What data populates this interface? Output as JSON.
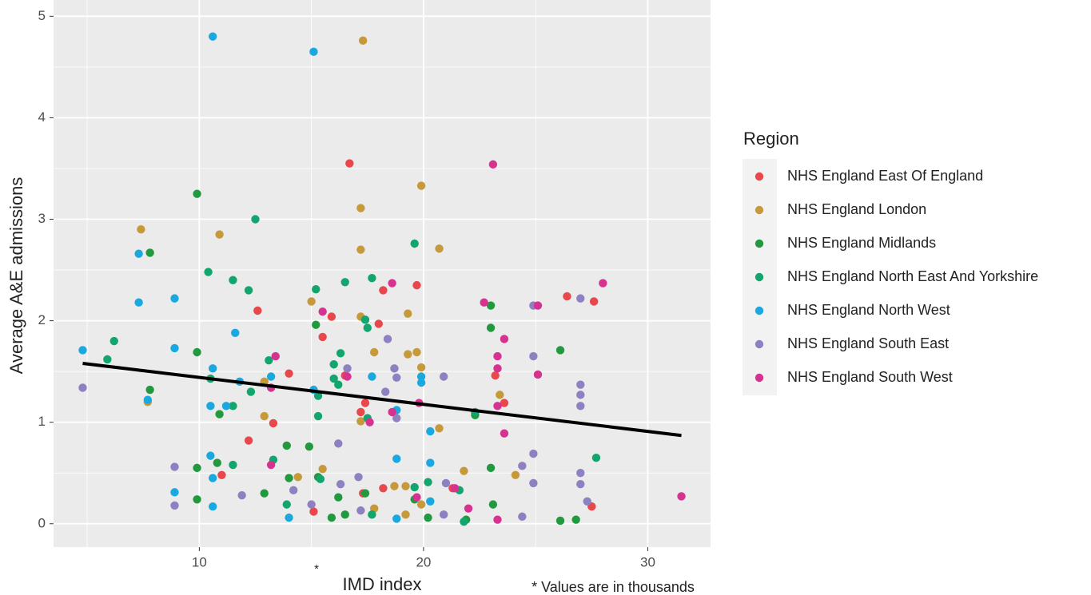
{
  "chart_data": {
    "type": "scatter",
    "x_label": "IMD index",
    "x_label_mark": "*",
    "y_label": "Average A&E admissions",
    "note": "* Values are in thousands",
    "legend_title": "Region",
    "legend_position": "right",
    "xlim": [
      3.5,
      32.8
    ],
    "ylim": [
      -0.23,
      5.16
    ],
    "xticks": [
      10,
      20,
      30
    ],
    "yticks": [
      0,
      1,
      2,
      3,
      4,
      5
    ],
    "grid": true,
    "trend_line": {
      "color": "#000000",
      "x": [
        4.8,
        31.5
      ],
      "y": [
        1.58,
        0.87
      ]
    },
    "series": [
      {
        "name": "NHS England East Of England",
        "color": "#e8474b",
        "x": [
          16.7,
          19.7,
          18.2,
          12.6,
          15.9,
          18.0,
          15.5,
          14.0,
          16.5,
          17.4,
          17.2,
          13.3,
          12.2,
          11.0,
          18.2,
          21.3,
          17.3,
          15.1,
          23.2,
          23.6,
          26.4,
          27.6,
          27.5
        ],
        "y": [
          3.55,
          2.35,
          2.3,
          2.1,
          2.04,
          1.97,
          1.84,
          1.48,
          1.46,
          1.19,
          1.1,
          0.99,
          0.82,
          0.48,
          0.35,
          0.35,
          0.3,
          0.12,
          1.46,
          1.19,
          2.24,
          2.19,
          0.17
        ]
      },
      {
        "name": "NHS England London",
        "color": "#c69a3b",
        "x": [
          17.3,
          19.9,
          17.2,
          7.4,
          10.9,
          20.7,
          17.2,
          15.0,
          19.3,
          17.2,
          17.8,
          19.7,
          19.3,
          19.9,
          12.9,
          7.7,
          23.4,
          12.9,
          17.2,
          20.7,
          15.5,
          14.4,
          21.8,
          24.1,
          18.7,
          19.2,
          17.8,
          19.9,
          19.2
        ],
        "y": [
          4.76,
          3.33,
          3.11,
          2.9,
          2.85,
          2.71,
          2.7,
          2.19,
          2.07,
          2.04,
          1.69,
          1.69,
          1.67,
          1.54,
          1.4,
          1.2,
          1.27,
          1.06,
          1.01,
          0.94,
          0.54,
          0.46,
          0.52,
          0.48,
          0.37,
          0.37,
          0.15,
          0.19,
          0.09
        ]
      },
      {
        "name": "NHS England Midlands",
        "color": "#23993f",
        "x": [
          9.9,
          7.8,
          9.9,
          7.8,
          15.2,
          10.9,
          9.9,
          10.8,
          13.9,
          14.9,
          9.9,
          12.9,
          14.0,
          15.3,
          16.2,
          16.5,
          17.4,
          19.6,
          20.2,
          23.0,
          23.0,
          22.3,
          23.0,
          23.1,
          26.1,
          26.1,
          21.9,
          26.8,
          15.9
        ],
        "y": [
          3.25,
          2.67,
          1.69,
          1.32,
          1.96,
          1.08,
          0.55,
          0.6,
          0.77,
          0.76,
          0.24,
          0.3,
          0.45,
          0.46,
          0.26,
          0.09,
          0.3,
          0.24,
          0.06,
          2.15,
          1.93,
          1.07,
          0.55,
          0.19,
          1.71,
          0.03,
          0.04,
          0.04,
          0.06
        ]
      },
      {
        "name": "NHS England North East And Yorkshire",
        "color": "#12a56d",
        "x": [
          5.9,
          6.2,
          10.4,
          12.5,
          11.5,
          12.2,
          15.2,
          16.5,
          17.7,
          19.6,
          17.4,
          17.5,
          16.3,
          13.1,
          16.0,
          16.0,
          16.2,
          10.5,
          11.5,
          12.3,
          15.3,
          15.3,
          17.5,
          13.3,
          11.5,
          15.4,
          13.9,
          17.7,
          20.2,
          19.6,
          21.6,
          22.3,
          27.7,
          21.8
        ],
        "y": [
          1.62,
          1.8,
          2.48,
          3.0,
          2.4,
          2.3,
          2.31,
          2.38,
          2.42,
          2.76,
          2.01,
          1.93,
          1.68,
          1.61,
          1.57,
          1.43,
          1.37,
          1.43,
          1.16,
          1.3,
          1.26,
          1.06,
          1.04,
          0.63,
          0.58,
          0.44,
          0.19,
          0.09,
          0.41,
          0.36,
          0.33,
          1.1,
          0.65,
          0.02
        ]
      },
      {
        "name": "NHS England North West",
        "color": "#1ba8de",
        "x": [
          10.6,
          15.1,
          7.3,
          7.3,
          8.9,
          11.6,
          4.8,
          8.9,
          10.6,
          11.8,
          13.2,
          7.7,
          10.5,
          11.2,
          15.1,
          17.7,
          19.9,
          19.9,
          18.8,
          20.3,
          10.5,
          10.6,
          18.8,
          20.3,
          8.9,
          10.6,
          14.0,
          18.8,
          20.3
        ],
        "y": [
          4.8,
          4.65,
          2.66,
          2.18,
          2.22,
          1.88,
          1.71,
          1.73,
          1.53,
          1.4,
          1.45,
          1.22,
          1.16,
          1.16,
          1.32,
          1.45,
          1.45,
          1.39,
          1.12,
          0.91,
          0.67,
          0.45,
          0.64,
          0.6,
          0.31,
          0.17,
          0.06,
          0.05,
          0.22
        ]
      },
      {
        "name": "NHS England South East",
        "color": "#8f80c1",
        "x": [
          4.8,
          8.9,
          8.9,
          11.9,
          14.2,
          15.0,
          16.2,
          16.3,
          17.1,
          17.2,
          18.3,
          18.4,
          18.7,
          18.8,
          18.8,
          20.9,
          21.0,
          20.9,
          24.4,
          24.4,
          24.9,
          24.9,
          24.9,
          24.9,
          27.0,
          27.0,
          27.0,
          27.0,
          27.0,
          27.0,
          27.3,
          16.6
        ],
        "y": [
          1.34,
          0.56,
          0.18,
          0.28,
          0.33,
          0.19,
          0.79,
          0.39,
          0.46,
          0.13,
          1.3,
          1.82,
          1.53,
          1.44,
          1.04,
          1.45,
          0.4,
          0.09,
          0.57,
          0.07,
          2.15,
          1.65,
          0.69,
          0.4,
          2.22,
          1.37,
          1.27,
          1.16,
          0.5,
          0.39,
          0.22,
          1.53
        ]
      },
      {
        "name": "NHS England South West",
        "color": "#d5338f",
        "x": [
          23.1,
          18.6,
          15.5,
          13.4,
          13.2,
          16.6,
          17.6,
          18.6,
          19.8,
          13.2,
          19.7,
          21.4,
          22.0,
          22.7,
          23.3,
          23.3,
          23.6,
          23.3,
          23.6,
          23.3,
          25.1,
          25.1,
          28.0,
          31.5
        ],
        "y": [
          3.54,
          2.37,
          2.09,
          1.65,
          1.34,
          1.45,
          1.0,
          1.1,
          1.19,
          0.58,
          0.26,
          0.35,
          0.15,
          2.18,
          1.65,
          1.53,
          1.82,
          1.16,
          0.89,
          0.04,
          2.15,
          1.47,
          2.37,
          0.27
        ]
      }
    ]
  }
}
